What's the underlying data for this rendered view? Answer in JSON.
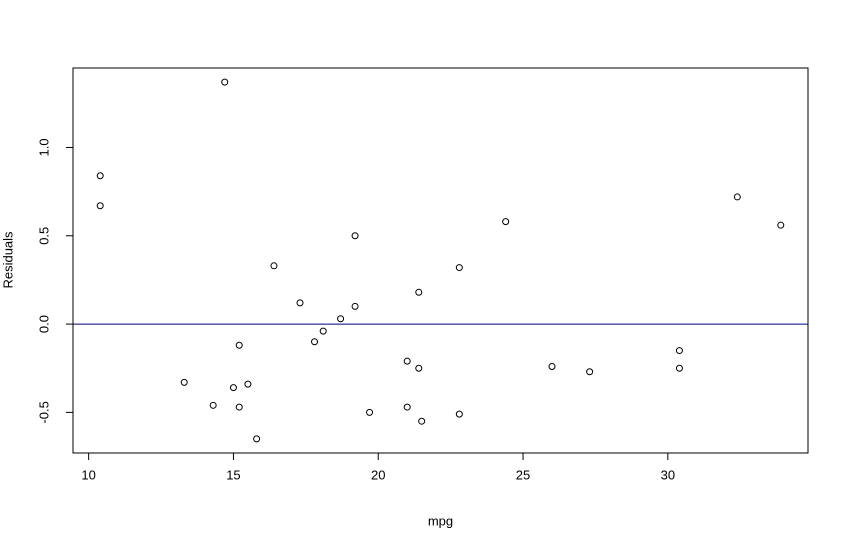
{
  "chart_data": {
    "type": "scatter",
    "x_label": "mpg",
    "y_label": "Residuals",
    "x": [
      10.4,
      10.4,
      14.7,
      16.4,
      17.3,
      19.2,
      19.2,
      18.7,
      18.1,
      17.8,
      15.2,
      21.4,
      22.8,
      24.4,
      13.3,
      15.0,
      15.5,
      14.3,
      15.2,
      15.8,
      19.7,
      21.0,
      21.4,
      21.0,
      21.5,
      22.8,
      26.0,
      27.3,
      30.4,
      30.4,
      32.4,
      33.9
    ],
    "values": [
      0.84,
      0.67,
      1.37,
      0.33,
      0.12,
      0.5,
      0.1,
      0.03,
      -0.04,
      -0.1,
      -0.12,
      0.18,
      0.32,
      0.58,
      -0.33,
      -0.36,
      -0.34,
      -0.46,
      -0.47,
      -0.65,
      -0.5,
      -0.21,
      -0.25,
      -0.47,
      -0.55,
      -0.51,
      -0.24,
      -0.27,
      -0.15,
      -0.25,
      0.72,
      0.56
    ],
    "color": "#000000",
    "xlim": [
      9.46,
      34.84
    ],
    "xticks": [
      10,
      15,
      20,
      25,
      30
    ],
    "ylim": [
      -0.73,
      1.45
    ],
    "yticks": [
      -0.5,
      {
        "value": 0,
        "label": "0.0"
      },
      0.5,
      {
        "value": 1,
        "label": "1.0"
      }
    ],
    "reference_line": {
      "y": 0,
      "color": "#000080"
    }
  }
}
